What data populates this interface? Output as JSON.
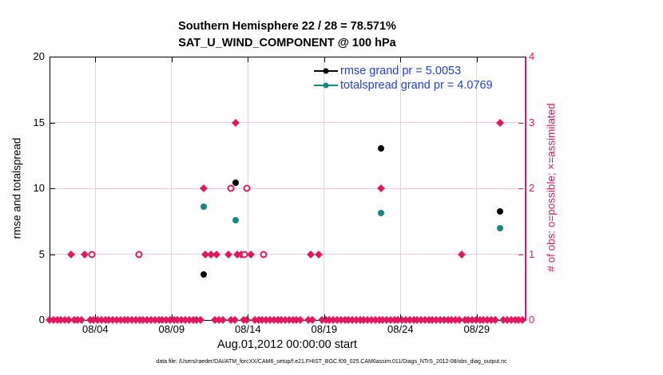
{
  "title": {
    "line1": "Southern Hemisphere 22 / 28 = 78.571%",
    "line2": "SAT_U_WIND_COMPONENT @ 100 hPa"
  },
  "legend": {
    "items": [
      {
        "label": "rmse grand pr = 5.0053",
        "color": "#000000"
      },
      {
        "label": "totalspread grand pr = 4.0769",
        "color": "#128a7e"
      }
    ],
    "text_color": "#2440dd"
  },
  "xlabel": "Aug.01,2012 00:00:00 start",
  "caption": "data file: /Users/raeder/DAI/ATM_forcXX/CAM6_setup/f.e21.FHIST_BGC.f09_025.CAM6assim.011/Diags_NTrS_2012-08/obs_diag_output.nc",
  "colors": {
    "obs_crimson": "#e0195e",
    "totalspread_teal": "#128a7e",
    "rmse_black": "#000000",
    "vertical_grid": "#d9d9d9",
    "horizontal_grid": "#f6c9d7"
  },
  "chart_data": {
    "type": "scatter",
    "x_unit": "day of August 2012",
    "x_range": [
      1,
      32
    ],
    "grid": "on",
    "left_axis": {
      "label": "rmse and totalspread",
      "range": [
        0,
        20
      ],
      "ticks": [
        0,
        5,
        10,
        15,
        20
      ]
    },
    "right_axis": {
      "label": "# of obs: o=possible; ×=assimilated",
      "range": [
        0,
        4
      ],
      "ticks": [
        0,
        1,
        2,
        3,
        4
      ],
      "color": "#e0195e"
    },
    "x_ticks": [
      {
        "day": 4,
        "label": "08/04"
      },
      {
        "day": 9,
        "label": "08/09"
      },
      {
        "day": 14,
        "label": "08/14"
      },
      {
        "day": 19,
        "label": "08/19"
      },
      {
        "day": 24,
        "label": "08/24"
      },
      {
        "day": 29,
        "label": "08/29"
      }
    ],
    "series": [
      {
        "name": "rmse",
        "axis": "left",
        "marker": "filled-circle",
        "color": "#000000",
        "points": [
          [
            11.1,
            3.45
          ],
          [
            13.2,
            10.4
          ],
          [
            22.75,
            13.05
          ],
          [
            30.55,
            8.25
          ]
        ]
      },
      {
        "name": "totalspread",
        "axis": "left",
        "marker": "filled-circle",
        "color": "#128a7e",
        "points": [
          [
            11.1,
            8.6
          ],
          [
            13.2,
            7.6
          ],
          [
            22.75,
            8.1
          ],
          [
            30.55,
            7.0
          ]
        ]
      },
      {
        "name": "obs-assimilated",
        "axis": "right",
        "marker": "thick-x",
        "color": "#e0195e",
        "points": [
          [
            2.4,
            1
          ],
          [
            3.3,
            1
          ],
          [
            11.2,
            1
          ],
          [
            11.55,
            1
          ],
          [
            11.95,
            1
          ],
          [
            12.75,
            1
          ],
          [
            13.3,
            1
          ],
          [
            13.55,
            1
          ],
          [
            14.2,
            1
          ],
          [
            18.1,
            1
          ],
          [
            18.65,
            1
          ],
          [
            28.0,
            1
          ],
          [
            11.1,
            2
          ],
          [
            22.75,
            2
          ],
          [
            13.2,
            3
          ],
          [
            30.55,
            3
          ]
        ]
      },
      {
        "name": "obs-possible",
        "axis": "right",
        "marker": "open-circle",
        "color": "#e0195e",
        "points": [
          [
            3.75,
            1
          ],
          [
            6.85,
            1
          ],
          [
            13.8,
            1
          ],
          [
            15.05,
            1
          ],
          [
            12.9,
            2
          ],
          [
            13.95,
            2
          ]
        ]
      },
      {
        "name": "obs-zero-band",
        "axis": "right",
        "marker": "thick-x",
        "color": "#e0195e",
        "value": 0,
        "step": 0.25,
        "segments": [
          [
            1.0,
            2.25
          ],
          [
            2.6,
            3.15
          ],
          [
            3.65,
            10.9
          ],
          [
            11.85,
            12.55
          ],
          [
            12.9,
            13.3
          ],
          [
            13.7,
            14.1
          ],
          [
            14.45,
            17.6
          ],
          [
            17.95,
            18.4
          ],
          [
            18.85,
            27.9
          ],
          [
            28.2,
            30.3
          ],
          [
            30.75,
            32.0
          ]
        ]
      }
    ]
  }
}
